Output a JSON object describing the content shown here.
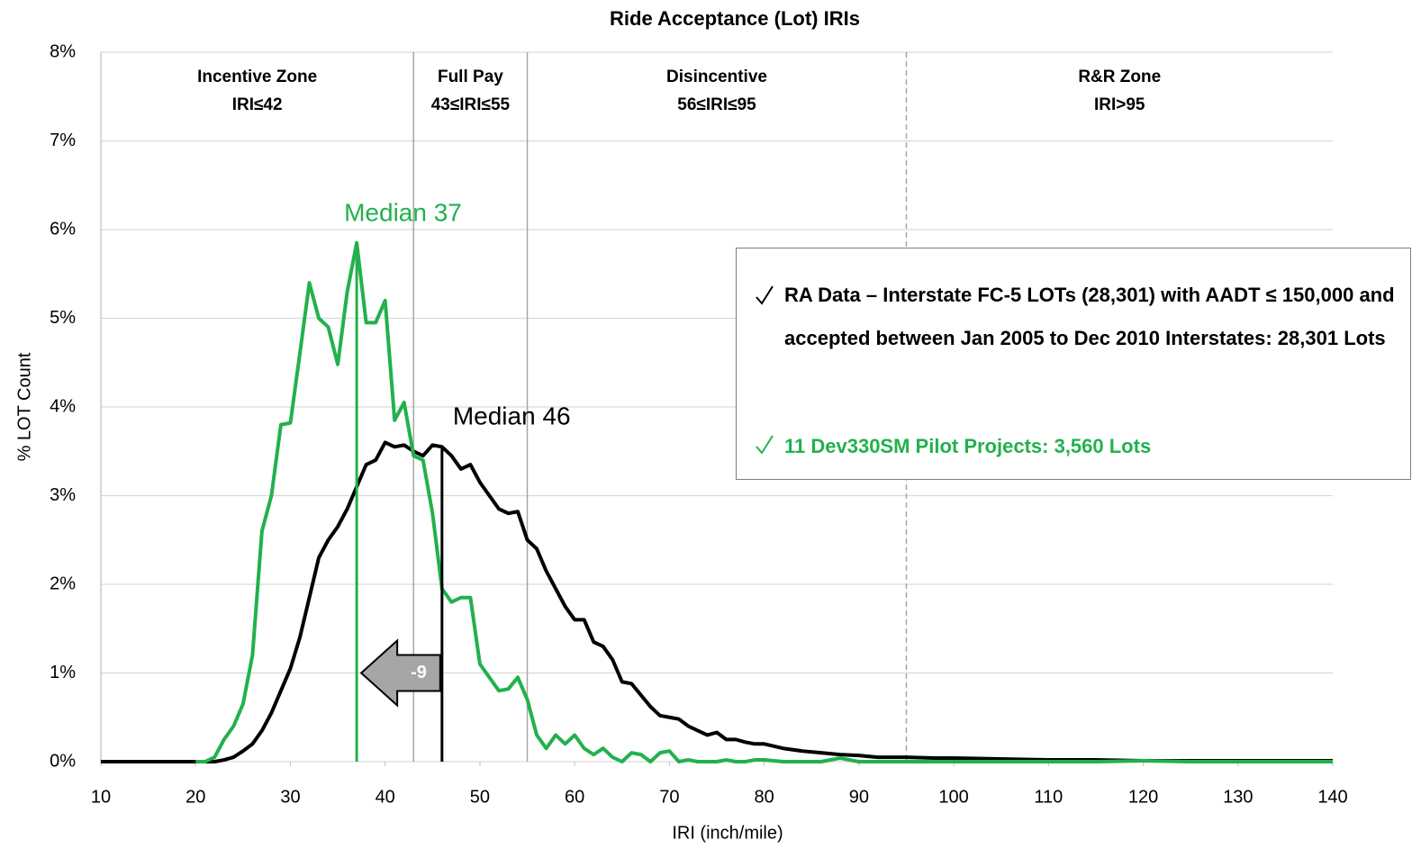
{
  "chart_data": {
    "type": "line",
    "title": "Ride Acceptance (Lot) IRIs",
    "x_label": "IRI (inch/mile)",
    "y_label": "% LOT Count",
    "x": [
      10,
      15,
      20,
      21,
      22,
      23,
      24,
      25,
      26,
      27,
      28,
      29,
      30,
      31,
      32,
      33,
      34,
      35,
      36,
      37,
      38,
      39,
      40,
      41,
      42,
      43,
      44,
      45,
      46,
      47,
      48,
      49,
      50,
      51,
      52,
      53,
      54,
      55,
      56,
      57,
      58,
      59,
      60,
      61,
      62,
      63,
      64,
      65,
      66,
      67,
      68,
      69,
      70,
      71,
      72,
      73,
      74,
      75,
      76,
      77,
      78,
      79,
      80,
      82,
      84,
      86,
      88,
      90,
      92,
      95,
      98,
      100,
      105,
      110,
      115,
      120,
      125,
      130,
      135,
      140
    ],
    "series": [
      {
        "name": "RA Data – Interstate FC-5 LOTs (28,301) with AADT ≤ 150,000 and accepted between Jan 2005 to Dec 2010 Interstates: 28,301 Lots",
        "color": "#000000",
        "values": [
          0,
          0,
          0,
          0,
          0,
          0.02,
          0.05,
          0.12,
          0.2,
          0.35,
          0.55,
          0.8,
          1.05,
          1.4,
          1.85,
          2.3,
          2.5,
          2.65,
          2.85,
          3.1,
          3.35,
          3.4,
          3.6,
          3.55,
          3.57,
          3.5,
          3.45,
          3.57,
          3.55,
          3.45,
          3.3,
          3.35,
          3.15,
          3.0,
          2.85,
          2.8,
          2.82,
          2.5,
          2.4,
          2.15,
          1.95,
          1.75,
          1.6,
          1.6,
          1.35,
          1.3,
          1.15,
          0.9,
          0.88,
          0.75,
          0.62,
          0.52,
          0.5,
          0.48,
          0.4,
          0.35,
          0.3,
          0.33,
          0.25,
          0.25,
          0.22,
          0.2,
          0.2,
          0.15,
          0.12,
          0.1,
          0.08,
          0.07,
          0.05,
          0.05,
          0.04,
          0.04,
          0.03,
          0.02,
          0.02,
          0.01,
          0.01,
          0.01,
          0.01,
          0.01
        ]
      },
      {
        "name": "11 Dev330SM Pilot Projects: 3,560 Lots",
        "color": "#22b14c",
        "values": [
          null,
          null,
          0,
          0,
          0.05,
          0.25,
          0.4,
          0.65,
          1.2,
          2.6,
          3.0,
          3.8,
          3.82,
          4.6,
          5.4,
          5.0,
          4.9,
          4.48,
          5.3,
          5.85,
          4.95,
          4.95,
          5.2,
          3.85,
          4.05,
          3.45,
          3.4,
          2.8,
          1.95,
          1.8,
          1.85,
          1.85,
          1.1,
          0.95,
          0.8,
          0.82,
          0.95,
          0.7,
          0.3,
          0.15,
          0.3,
          0.2,
          0.3,
          0.15,
          0.08,
          0.15,
          0.05,
          0,
          0.1,
          0.08,
          0,
          0.1,
          0.12,
          0,
          0.02,
          0,
          0,
          0,
          0.02,
          0,
          0,
          0.02,
          0.02,
          0,
          0,
          0,
          0.04,
          0,
          0,
          0,
          0,
          0,
          0,
          0,
          0,
          0.01,
          0,
          0,
          0,
          0
        ]
      }
    ],
    "xlim": [
      10,
      140
    ],
    "xticks": [
      10,
      20,
      30,
      40,
      50,
      60,
      70,
      80,
      90,
      100,
      110,
      120,
      130,
      140
    ],
    "ylim": [
      0,
      8
    ],
    "yticks": [
      {
        "value": 0,
        "label": "0%"
      },
      {
        "value": 1,
        "label": "1%"
      },
      {
        "value": 2,
        "label": "2%"
      },
      {
        "value": 3,
        "label": "3%"
      },
      {
        "value": 4,
        "label": "4%"
      },
      {
        "value": 5,
        "label": "5%"
      },
      {
        "value": 6,
        "label": "6%"
      },
      {
        "value": 7,
        "label": "7%"
      },
      {
        "value": 8,
        "label": "8%"
      }
    ],
    "grid": true,
    "zones": [
      {
        "title": "Incentive Zone",
        "range": "IRI≤42"
      },
      {
        "title": "Full Pay",
        "range": "43≤IRI≤55"
      },
      {
        "title": "Disincentive",
        "range": "56≤IRI≤95"
      },
      {
        "title": "R&R Zone",
        "range": "IRI>95"
      }
    ],
    "zone_boundaries": [
      {
        "x": 43,
        "dashed": false
      },
      {
        "x": 55,
        "dashed": false
      },
      {
        "x": 95,
        "dashed": true
      }
    ],
    "medians": [
      {
        "x": 37,
        "y": 5.85,
        "label": "Median 37",
        "color": "#22b14c"
      },
      {
        "x": 46,
        "y": 3.55,
        "label": "Median 46",
        "color": "#000000"
      }
    ],
    "arrow": {
      "from": 46,
      "to": 37,
      "y": 1,
      "label": "-9"
    }
  }
}
